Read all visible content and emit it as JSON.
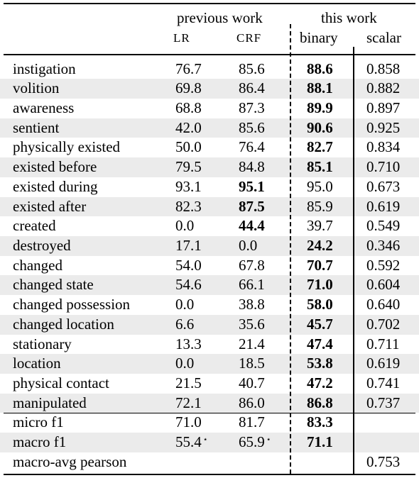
{
  "headers": {
    "group_previous": "previous work",
    "group_this": "this work",
    "col_lr": "LR",
    "col_crf": "CRF",
    "col_binary": "binary",
    "col_scalar": "scalar"
  },
  "rows": [
    {
      "feature": "instigation",
      "lr": "76.7",
      "crf": "85.6",
      "binary": "88.6",
      "scalar": "0.858",
      "bold": "binary"
    },
    {
      "feature": "volition",
      "lr": "69.8",
      "crf": "86.4",
      "binary": "88.1",
      "scalar": "0.882",
      "bold": "binary"
    },
    {
      "feature": "awareness",
      "lr": "68.8",
      "crf": "87.3",
      "binary": "89.9",
      "scalar": "0.897",
      "bold": "binary"
    },
    {
      "feature": "sentient",
      "lr": "42.0",
      "crf": "85.6",
      "binary": "90.6",
      "scalar": "0.925",
      "bold": "binary"
    },
    {
      "feature": "physically existed",
      "lr": "50.0",
      "crf": "76.4",
      "binary": "82.7",
      "scalar": "0.834",
      "bold": "binary"
    },
    {
      "feature": "existed before",
      "lr": "79.5",
      "crf": "84.8",
      "binary": "85.1",
      "scalar": "0.710",
      "bold": "binary"
    },
    {
      "feature": "existed during",
      "lr": "93.1",
      "crf": "95.1",
      "binary": "95.0",
      "scalar": "0.673",
      "bold": "crf"
    },
    {
      "feature": "existed after",
      "lr": "82.3",
      "crf": "87.5",
      "binary": "85.9",
      "scalar": "0.619",
      "bold": "crf"
    },
    {
      "feature": "created",
      "lr": "0.0",
      "crf": "44.4",
      "binary": "39.7",
      "scalar": "0.549",
      "bold": "crf"
    },
    {
      "feature": "destroyed",
      "lr": "17.1",
      "crf": "0.0",
      "binary": "24.2",
      "scalar": "0.346",
      "bold": "binary"
    },
    {
      "feature": "changed",
      "lr": "54.0",
      "crf": "67.8",
      "binary": "70.7",
      "scalar": "0.592",
      "bold": "binary"
    },
    {
      "feature": "changed state",
      "lr": "54.6",
      "crf": "66.1",
      "binary": "71.0",
      "scalar": "0.604",
      "bold": "binary"
    },
    {
      "feature": "changed possession",
      "lr": "0.0",
      "crf": "38.8",
      "binary": "58.0",
      "scalar": "0.640",
      "bold": "binary"
    },
    {
      "feature": "changed location",
      "lr": "6.6",
      "crf": "35.6",
      "binary": "45.7",
      "scalar": "0.702",
      "bold": "binary"
    },
    {
      "feature": "stationary",
      "lr": "13.3",
      "crf": "21.4",
      "binary": "47.4",
      "scalar": "0.711",
      "bold": "binary"
    },
    {
      "feature": "location",
      "lr": "0.0",
      "crf": "18.5",
      "binary": "53.8",
      "scalar": "0.619",
      "bold": "binary"
    },
    {
      "feature": "physical contact",
      "lr": "21.5",
      "crf": "40.7",
      "binary": "47.2",
      "scalar": "0.741",
      "bold": "binary"
    },
    {
      "feature": "manipulated",
      "lr": "72.1",
      "crf": "86.0",
      "binary": "86.8",
      "scalar": "0.737",
      "bold": "binary"
    }
  ],
  "summary": [
    {
      "feature": "micro f1",
      "lr": "71.0",
      "crf": "81.7",
      "binary": "83.3",
      "scalar": "",
      "bold": "binary"
    },
    {
      "feature": "macro f1",
      "lr": "55.4",
      "lr_mark": "⋆",
      "crf": "65.9",
      "crf_mark": "⋆",
      "binary": "71.1",
      "scalar": "",
      "bold": "binary"
    },
    {
      "feature": "macro-avg pearson",
      "lr": "",
      "crf": "",
      "binary": "",
      "scalar": "0.753",
      "bold": ""
    }
  ]
}
